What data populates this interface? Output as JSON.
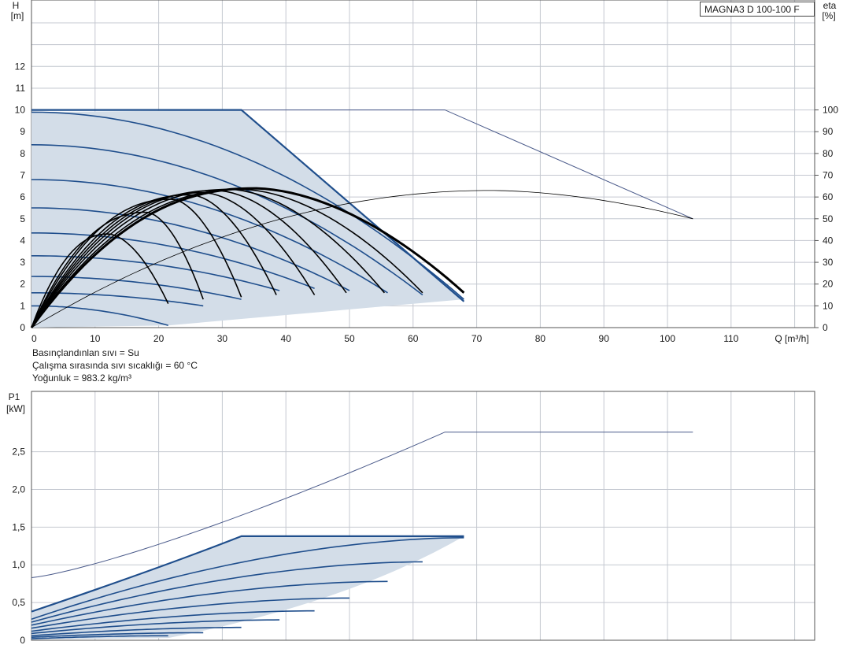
{
  "model": "MAGNA3 D 100-100 F",
  "info": {
    "liquid": "Basınçlandınlan sıvı = Su",
    "temperature": "Çalışma sırasında sıvı sıcaklığı = 60 °C",
    "density": "Yoğunluk = 983.2 kg/m³"
  },
  "colors": {
    "grid": "#c4c8d0",
    "fill": "#d3dde8",
    "curve": "#1f4e8c",
    "eta": "#000000",
    "max_line": "#4a5a8a"
  },
  "chart_data": [
    {
      "type": "line",
      "name": "head",
      "ylabel": "H",
      "yunit": "[m]",
      "y2label": "eta",
      "y2unit": "[%]",
      "xlabel": "Q [m³/h]",
      "xlim": [
        0,
        123
      ],
      "ylim": [
        0,
        15
      ],
      "y2lim": [
        0,
        150
      ],
      "xticks": [
        0,
        10,
        20,
        30,
        40,
        50,
        60,
        70,
        80,
        90,
        100,
        110
      ],
      "yticks": [
        0,
        1,
        2,
        3,
        4,
        5,
        6,
        7,
        8,
        9,
        10,
        11,
        12
      ],
      "y2ticks": [
        0,
        10,
        20,
        30,
        40,
        50,
        60,
        70,
        80,
        90,
        100
      ],
      "grid": true,
      "operating_area": [
        [
          0,
          10
        ],
        [
          33,
          10
        ],
        [
          68,
          1.2
        ],
        [
          21.5,
          0.1
        ],
        [
          0,
          0
        ]
      ],
      "max_curve": [
        [
          0,
          10
        ],
        [
          65,
          10
        ],
        [
          104,
          5.0
        ]
      ],
      "head_curves": [
        {
          "h0": 9.9,
          "qmax": 68,
          "hend": 1.3
        },
        {
          "h0": 8.4,
          "qmax": 61.5,
          "hend": 1.5
        },
        {
          "h0": 6.8,
          "qmax": 56,
          "hend": 1.6
        },
        {
          "h0": 5.5,
          "qmax": 50,
          "hend": 1.7
        },
        {
          "h0": 4.35,
          "qmax": 44.5,
          "hend": 1.8
        },
        {
          "h0": 3.3,
          "qmax": 39,
          "hend": 1.7
        },
        {
          "h0": 2.35,
          "qmax": 33,
          "hend": 1.3
        },
        {
          "h0": 1.6,
          "qmax": 27,
          "hend": 1.0
        },
        {
          "h0": 1.0,
          "qmax": 21.5,
          "hend": 0.1
        }
      ],
      "eta_curves": [
        {
          "q0": 12,
          "peak": 43,
          "qend": 21.5,
          "eend": 11,
          "width": 1.6
        },
        {
          "q0": 18,
          "peak": 53,
          "qend": 27,
          "eend": 13,
          "width": 1.6
        },
        {
          "q0": 22,
          "peak": 59,
          "qend": 33,
          "eend": 14,
          "width": 1.6
        },
        {
          "q0": 25,
          "peak": 61,
          "qend": 38.5,
          "eend": 15,
          "width": 1.6
        },
        {
          "q0": 27,
          "peak": 62,
          "qend": 44.5,
          "eend": 15,
          "width": 1.6
        },
        {
          "q0": 29,
          "peak": 63,
          "qend": 49.5,
          "eend": 16,
          "width": 1.6
        },
        {
          "q0": 31,
          "peak": 63.5,
          "qend": 55.5,
          "eend": 16,
          "width": 1.6
        },
        {
          "q0": 33,
          "peak": 63.5,
          "qend": 61.5,
          "eend": 16,
          "width": 1.6
        },
        {
          "q0": 35,
          "peak": 64,
          "qend": 68,
          "eend": 16,
          "width": 3.0
        }
      ],
      "eta_max_curve": {
        "q0": 72,
        "peak": 63,
        "qend": 104,
        "eend": 50
      }
    },
    {
      "type": "line",
      "name": "power",
      "ylabel": "P1",
      "yunit": "[kW]",
      "xlim": [
        0,
        123
      ],
      "ylim": [
        0,
        3.0
      ],
      "yticks": [
        0,
        0.5,
        1.0,
        1.5,
        2.0,
        2.5
      ],
      "ytick_labels": [
        "0",
        "0,5",
        "1,0",
        "1,5",
        "2,0",
        "2,5"
      ],
      "grid": true,
      "operating_area": [
        [
          0,
          0.38
        ],
        [
          33,
          1.38
        ],
        [
          68,
          1.38
        ],
        [
          21.5,
          0.02
        ],
        [
          0,
          0.01
        ]
      ],
      "max_curve": [
        [
          0,
          0.83
        ],
        [
          65,
          2.76
        ],
        [
          104,
          2.76
        ]
      ],
      "power_curves": [
        {
          "p0": 0.38,
          "pend": 1.38,
          "qend": 68
        },
        {
          "p0": 0.28,
          "pend": 1.36,
          "qend": 68
        },
        {
          "p0": 0.24,
          "pend": 1.04,
          "qend": 61.5
        },
        {
          "p0": 0.2,
          "pend": 0.78,
          "qend": 56
        },
        {
          "p0": 0.16,
          "pend": 0.56,
          "qend": 50
        },
        {
          "p0": 0.12,
          "pend": 0.39,
          "qend": 44.5
        },
        {
          "p0": 0.09,
          "pend": 0.27,
          "qend": 39
        },
        {
          "p0": 0.06,
          "pend": 0.17,
          "qend": 33
        },
        {
          "p0": 0.04,
          "pend": 0.1,
          "qend": 27
        },
        {
          "p0": 0.02,
          "pend": 0.06,
          "qend": 21.5
        }
      ]
    }
  ]
}
